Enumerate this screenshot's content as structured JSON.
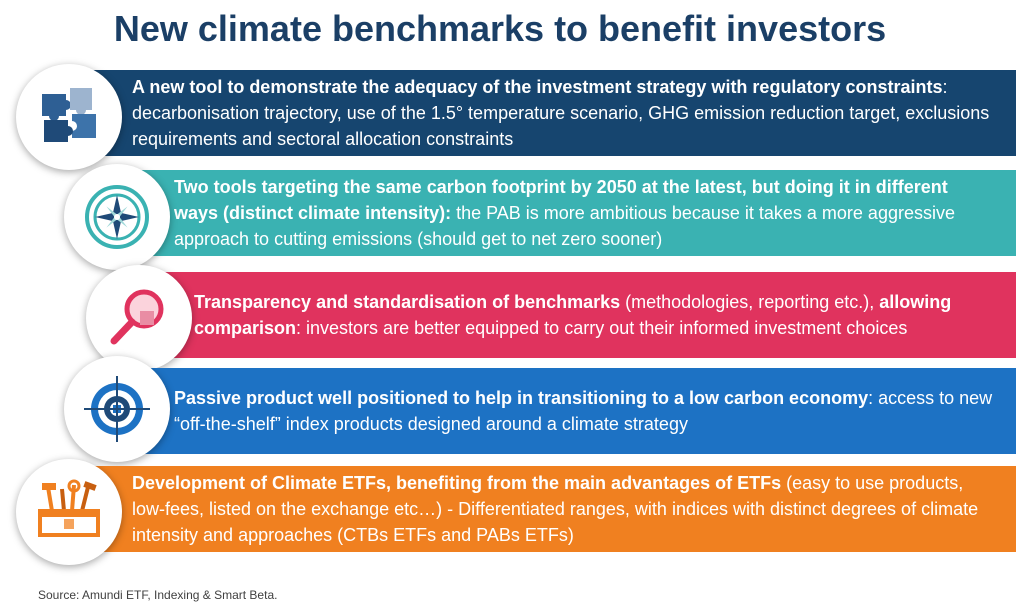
{
  "title": "New climate benchmarks to benefit investors",
  "colors": {
    "title": "#1b3f66",
    "band1": "#16456f",
    "band2": "#3ab2b2",
    "band3": "#e0335e",
    "band4": "#1d72c4",
    "band5": "#f08020"
  },
  "items": [
    {
      "icon": "puzzle-icon",
      "bold": "A new tool to demonstrate the adequacy of the investment strategy with regulatory constraints",
      "text": ": decarbonisation trajectory, use of the 1.5° temperature scenario, GHG emission reduction target, exclusions requirements and sectoral allocation constraints",
      "text2": ""
    },
    {
      "icon": "compass-icon",
      "bold": "Two tools targeting the same carbon footprint by 2050 at the latest, but doing it in different ways (distinct climate intensity):",
      "text": " the PAB is more ambitious because it takes a more aggressive approach to cutting emissions (should get to net zero sooner)",
      "text2": ""
    },
    {
      "icon": "magnifier-icon",
      "bold": "Transparency and standardisation of benchmarks",
      "text": " (methodologies, reporting etc.), ",
      "bold2": "allowing comparison",
      "text2": ": investors are better equipped to carry out their informed investment choices"
    },
    {
      "icon": "target-icon",
      "bold": "Passive product well positioned to help in transitioning to a low carbon economy",
      "text": ": access to new “off-the-shelf” index products designed around a climate strategy",
      "text2": ""
    },
    {
      "icon": "toolbox-icon",
      "bold": "Development of Climate ETFs, benefiting from the main advantages of ETFs",
      "text": " (easy to use products, low-fees, listed on the exchange etc…) - Differentiated ranges, with indices with distinct degrees of climate intensity and approaches (CTBs ETFs and PABs ETFs)",
      "text2": ""
    }
  ],
  "source": "Source: Amundi ETF, Indexing & Smart Beta."
}
